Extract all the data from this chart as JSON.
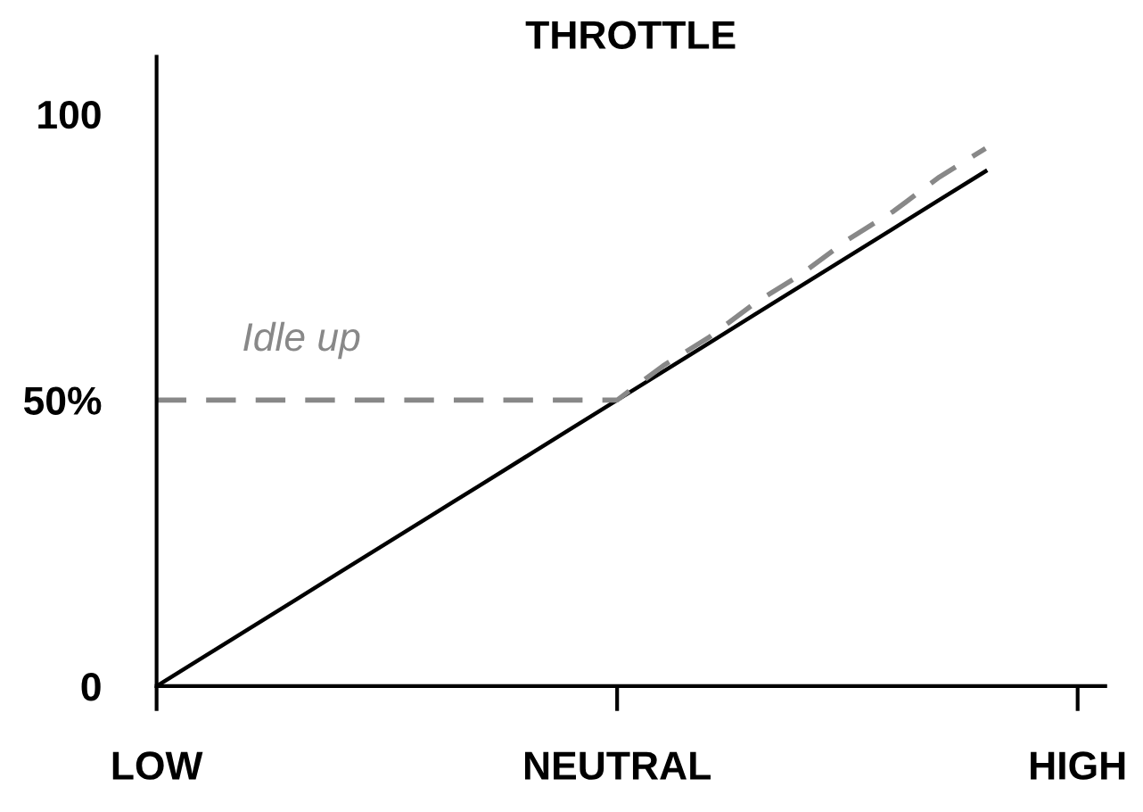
{
  "chart_data": {
    "type": "line",
    "title": "THROTTLE",
    "ylim": [
      0,
      110
    ],
    "categories": [
      "LOW",
      null,
      null,
      null,
      null,
      null,
      null,
      null,
      null,
      null,
      "NEUTRAL",
      null,
      null,
      null,
      null,
      null,
      null,
      null,
      null,
      null,
      "HIGH"
    ],
    "yticks": [
      0,
      {
        "value": 50,
        "label": "50%"
      },
      100
    ],
    "series": [
      {
        "color": "#000000",
        "values": [
          0,
          5,
          10,
          15,
          20,
          25,
          30,
          35,
          40,
          45,
          50,
          55,
          60,
          65,
          70,
          75,
          80,
          85,
          90,
          null,
          null
        ],
        "line_style": "solid"
      },
      {
        "color": "#888888",
        "values": [
          50,
          50,
          50,
          50,
          50,
          50,
          50,
          50,
          50,
          50,
          50,
          56,
          61,
          67,
          72,
          78,
          83,
          89,
          94,
          null,
          null
        ],
        "line_style": "dashed"
      }
    ],
    "annotations": [
      "Idle up"
    ],
    "grid": false,
    "legend": false,
    "marker": "none"
  }
}
